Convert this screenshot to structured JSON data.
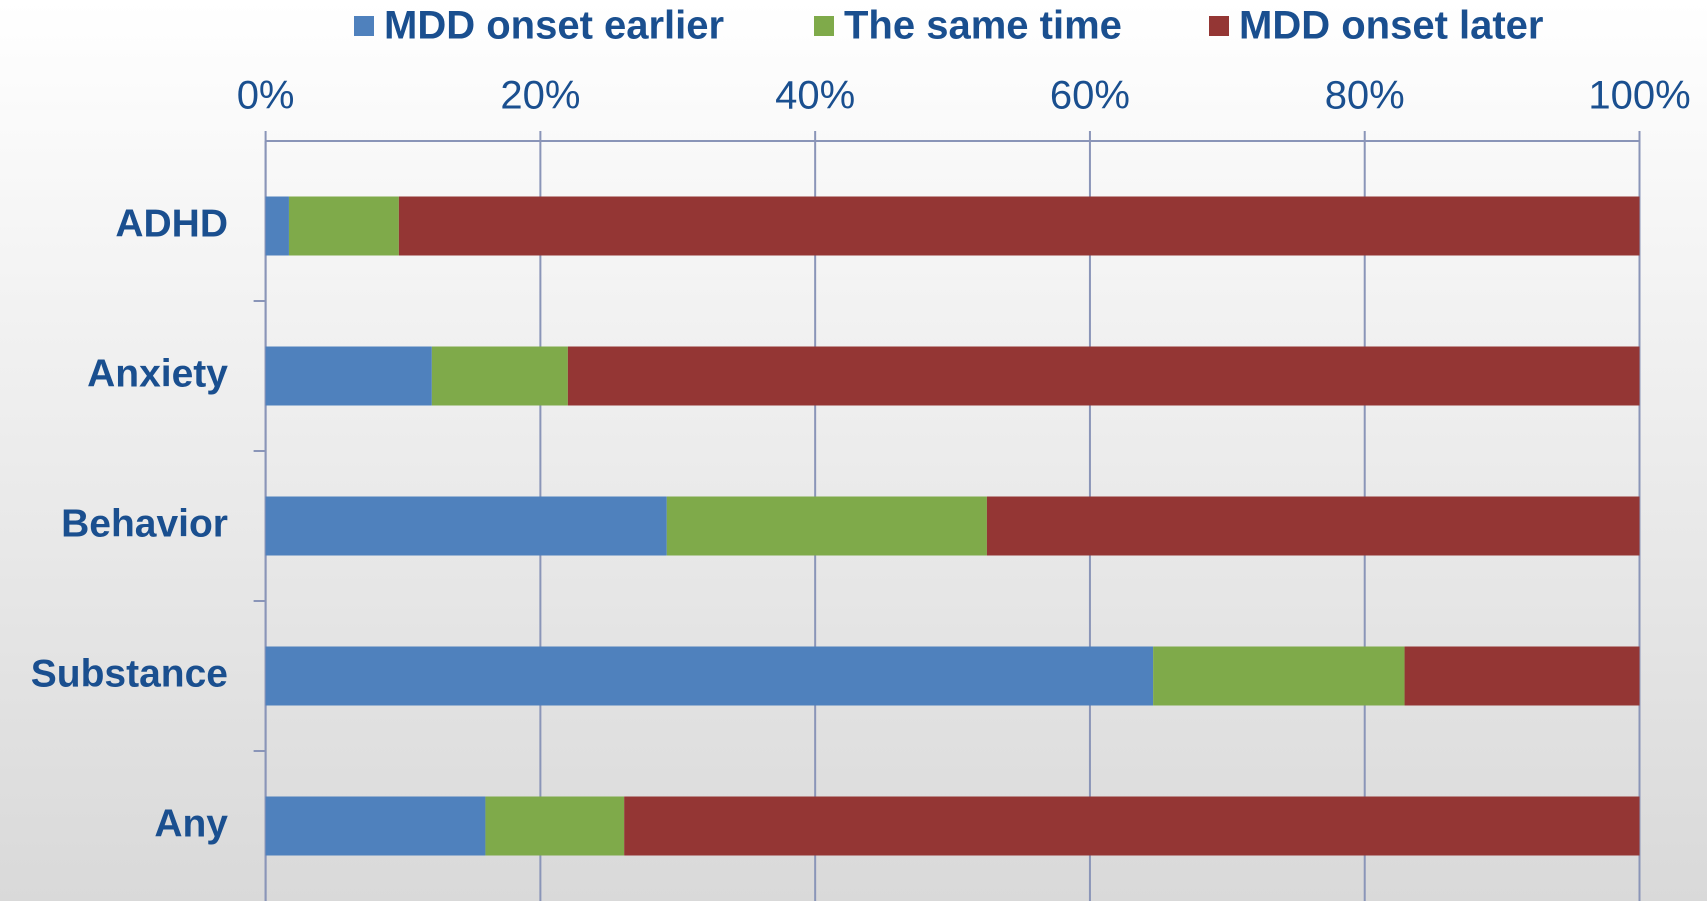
{
  "chart_data": {
    "type": "stacked_barh",
    "categories": [
      "ADHD",
      "Anxiety",
      "Behavior",
      "Substance",
      "Any"
    ],
    "series": [
      {
        "name": "MDD onset earlier",
        "color": "#4f81bd",
        "values": [
          1.7,
          12.1,
          29.2,
          64.6,
          16.0
        ]
      },
      {
        "name": "The same time",
        "color": "#7faa4a",
        "values": [
          8.0,
          9.9,
          23.3,
          18.3,
          10.1
        ]
      },
      {
        "name": "MDD onset later",
        "color": "#943634",
        "values": [
          90.3,
          78.0,
          47.5,
          17.1,
          73.9
        ]
      }
    ],
    "xlim": [
      0,
      100
    ],
    "xticks": [
      {
        "value": 0,
        "label": "0%"
      },
      {
        "value": 20,
        "label": "20%"
      },
      {
        "value": 40,
        "label": "40%"
      },
      {
        "value": 60,
        "label": "60%"
      },
      {
        "value": 80,
        "label": "80%"
      },
      {
        "value": 100,
        "label": "100%"
      }
    ],
    "grid": true,
    "legend": "top"
  }
}
